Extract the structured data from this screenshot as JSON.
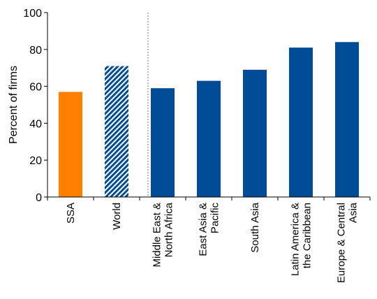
{
  "chart_data": {
    "type": "bar",
    "title_fragment": "...",
    "ylabel": "Percent of firms",
    "ylim": [
      0,
      100
    ],
    "yticks": [
      0,
      20,
      40,
      60,
      80,
      100
    ],
    "categories": [
      [
        "SSA"
      ],
      [
        "World"
      ],
      [
        "Middle East &",
        "North Africa"
      ],
      [
        "East Asia &",
        "Pacific"
      ],
      [
        "South Asia"
      ],
      [
        "Latin America &",
        "the Caribbean"
      ],
      [
        "Europe & Central",
        "Asia"
      ]
    ],
    "values": [
      57,
      71,
      59,
      63,
      69,
      81,
      84
    ],
    "bar_styles": [
      "solid-orange",
      "hatched-blue",
      "solid-blue",
      "solid-blue",
      "solid-blue",
      "solid-blue",
      "solid-blue"
    ],
    "colors": {
      "orange": "#FF8000",
      "blue": "#004C97",
      "hatch_bg": "#FFFFFF"
    },
    "separator": "dotted vertical line between World and Middle East & North Africa",
    "grid": false
  }
}
